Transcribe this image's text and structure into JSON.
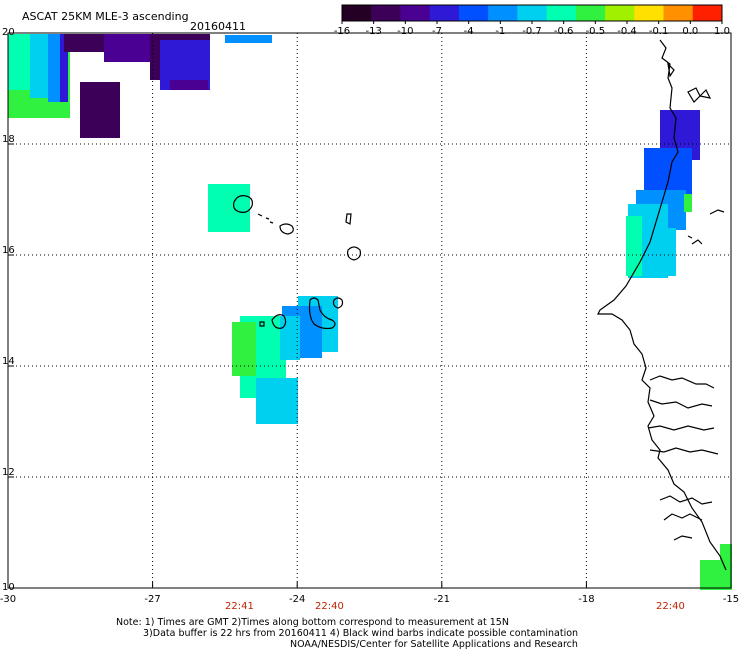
{
  "header": {
    "product": "ASCAT 25KM MLE-3 ascending",
    "date": "20160411"
  },
  "colorbar": {
    "labels": [
      "-16",
      "-13",
      "-10",
      "-7",
      "-4",
      "-1",
      "-0.7",
      "-0.6",
      "-0.5",
      "-0.4",
      "-0.1",
      "0.0",
      "1.0"
    ],
    "colors": [
      "#240024",
      "#3c0058",
      "#4a0092",
      "#2e1ad6",
      "#0050ff",
      "#0090ff",
      "#00d0f0",
      "#00ffb0",
      "#30f040",
      "#a0f000",
      "#ffe000",
      "#ff9000",
      "#ff2000"
    ]
  },
  "map": {
    "lon_labels": [
      "-30",
      "-27",
      "-24",
      "-21",
      "-18",
      "-15"
    ],
    "lat_labels": [
      "20",
      "18",
      "16",
      "14",
      "12",
      "10"
    ],
    "pass_times": [
      "22:41",
      "22:40",
      "22:40"
    ],
    "time_color": "#c02000"
  },
  "notes": {
    "line1": "Note: 1) Times are GMT 2)Times along bottom correspond to measurement at 15N",
    "line2": "3)Data buffer is 22 hrs from 20160411 4) Black wind barbs indicate possible contamination",
    "line3": "NOAA/NESDIS/Center for Satellite Applications and Research"
  }
}
